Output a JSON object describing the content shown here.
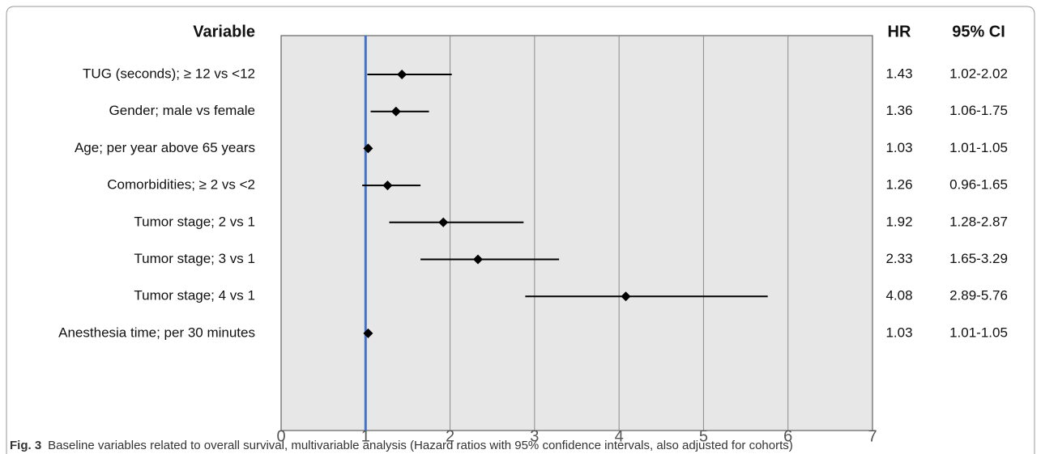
{
  "chart_data": {
    "type": "forest",
    "headers": {
      "variable": "Variable",
      "hr": "HR",
      "ci": "95% CI"
    },
    "categories": [
      "TUG (seconds); ≥ 12 vs <12",
      "Gender; male vs female",
      "Age; per year above 65 years",
      "Comorbidities; ≥ 2 vs <2",
      "Tumor stage; 2 vs 1",
      "Tumor stage; 3 vs 1",
      "Tumor stage; 4 vs 1",
      "Anesthesia time; per 30 minutes"
    ],
    "series": [
      {
        "name": "HR",
        "color": "#000000",
        "values": [
          1.43,
          1.36,
          1.03,
          1.26,
          1.92,
          2.33,
          4.08,
          1.03
        ],
        "lower": [
          1.02,
          1.06,
          1.01,
          0.96,
          1.28,
          1.65,
          2.89,
          1.01
        ],
        "upper": [
          2.02,
          1.75,
          1.05,
          1.65,
          2.87,
          3.29,
          5.76,
          1.05
        ],
        "ci_labels": [
          "1.02-2.02",
          "1.06-1.75",
          "1.01-1.05",
          "0.96-1.65",
          "1.28-2.87",
          "1.65-3.29",
          "2.89-5.76",
          "1.01-1.05"
        ]
      }
    ],
    "reference_line": 1,
    "reference_color": "#4472c4",
    "xlim": [
      0,
      7
    ],
    "xticks": [
      0,
      1,
      2,
      3,
      4,
      5,
      6,
      7
    ],
    "grid": true,
    "caption_label": "Fig. 3",
    "caption": "Baseline variables related to overall survival, multivariable analysis (Hazard ratios with 95% confidence intervals, also adjusted for cohorts)"
  }
}
